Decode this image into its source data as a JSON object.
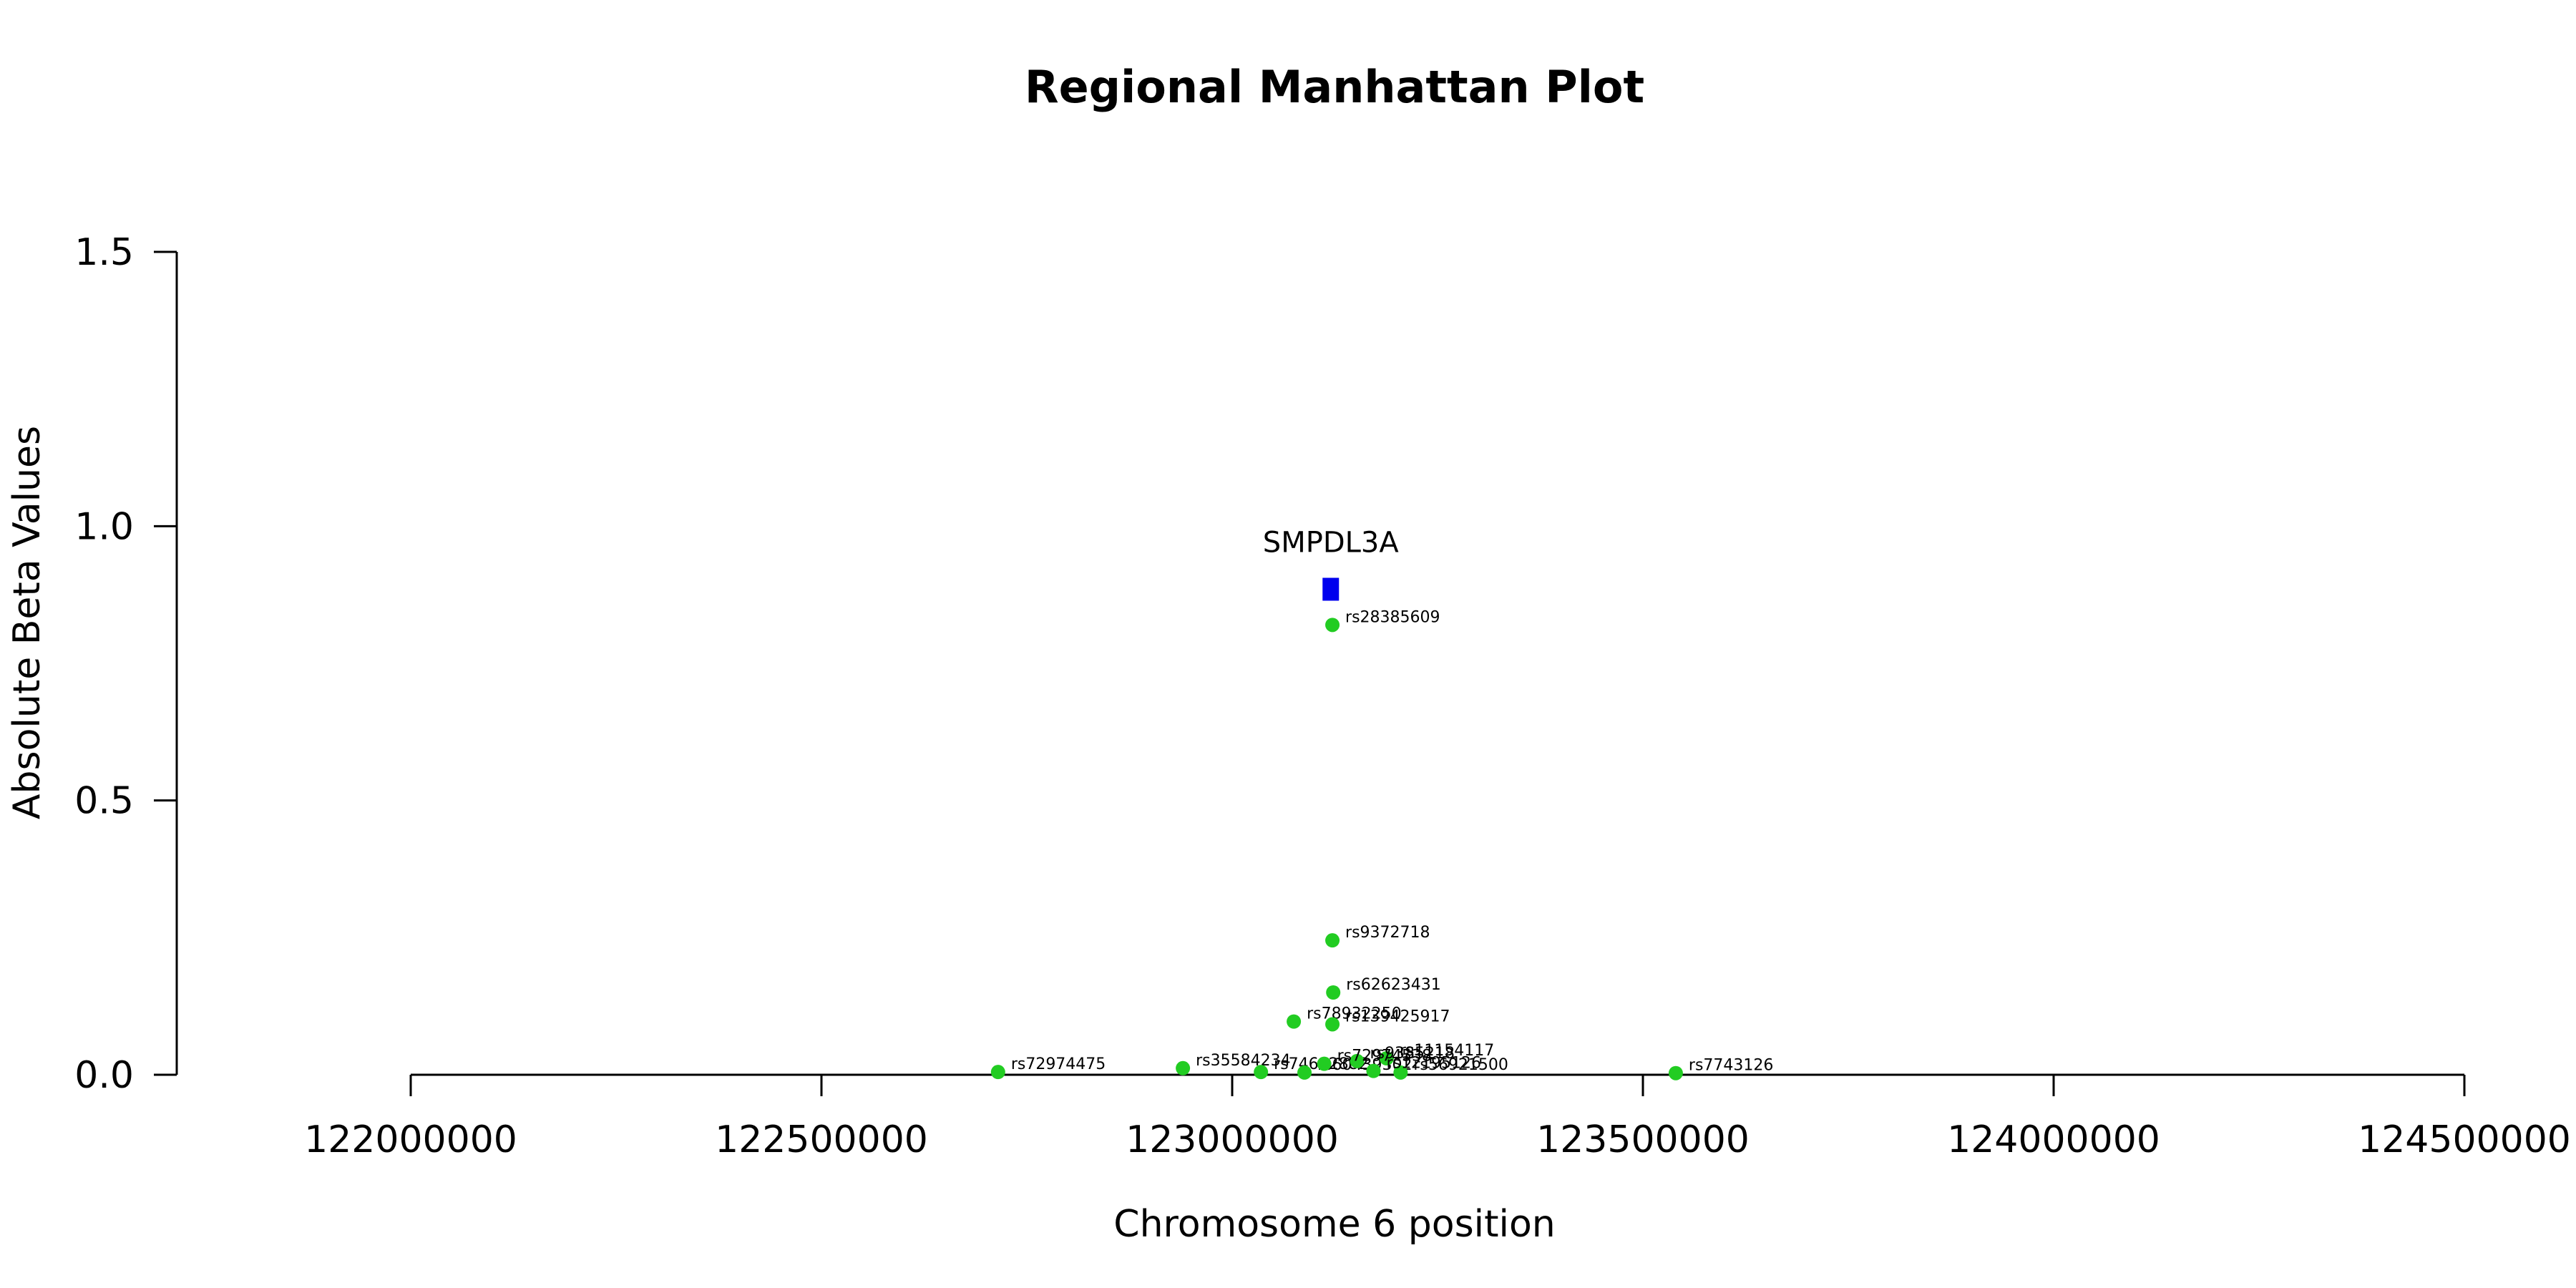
{
  "chart_data": {
    "type": "scatter",
    "title": "Regional Manhattan Plot",
    "xlabel": "Chromosome 6 position",
    "ylabel": "Absolute Beta Values",
    "xlim": [
      121700000,
      124500000
    ],
    "ylim": [
      0,
      1.5
    ],
    "x_ticks": [
      122000000,
      122500000,
      123000000,
      123500000,
      124000000,
      124500000
    ],
    "x_tick_labels": [
      "122000000",
      "122500000",
      "123000000",
      "123500000",
      "124000000",
      "124500000"
    ],
    "y_ticks": [
      0,
      0.5,
      1,
      1.5
    ],
    "y_tick_labels": [
      "0.0",
      "0.5",
      "1.0",
      "1.5"
    ],
    "grid": false,
    "colors": {
      "snp": "#22cc22",
      "gene": "#0000ee"
    },
    "genes": [
      {
        "name": "SMPDL3A",
        "start": 123110000,
        "end": 123130000,
        "y": 0.885
      }
    ],
    "snps": [
      {
        "id": "rs28385609",
        "x": 123122000,
        "y": 0.82
      },
      {
        "id": "rs9372718",
        "x": 123122000,
        "y": 0.245
      },
      {
        "id": "rs62623431",
        "x": 123123000,
        "y": 0.15
      },
      {
        "id": "rs78932250",
        "x": 123075000,
        "y": 0.097
      },
      {
        "id": "rs139425917",
        "x": 123122000,
        "y": 0.092
      },
      {
        "id": "rs72974475",
        "x": 122715000,
        "y": 0.005
      },
      {
        "id": "rs35584234",
        "x": 122940000,
        "y": 0.012
      },
      {
        "id": "rs74662882",
        "x": 123035000,
        "y": 0.005
      },
      {
        "id": "rs60439302",
        "x": 123088000,
        "y": 0.004
      },
      {
        "id": "rs7743126",
        "x": 123540000,
        "y": 0.003
      },
      {
        "id": "rs11154117",
        "x": 123188000,
        "y": 0.03
      },
      {
        "id": "rs9385218",
        "x": 123152000,
        "y": 0.025
      },
      {
        "id": "rs72974538",
        "x": 123112000,
        "y": 0.02
      },
      {
        "id": "rs56921500",
        "x": 123205000,
        "y": 0.004
      },
      {
        "id": "rs12195126",
        "x": 123172000,
        "y": 0.007
      }
    ]
  }
}
